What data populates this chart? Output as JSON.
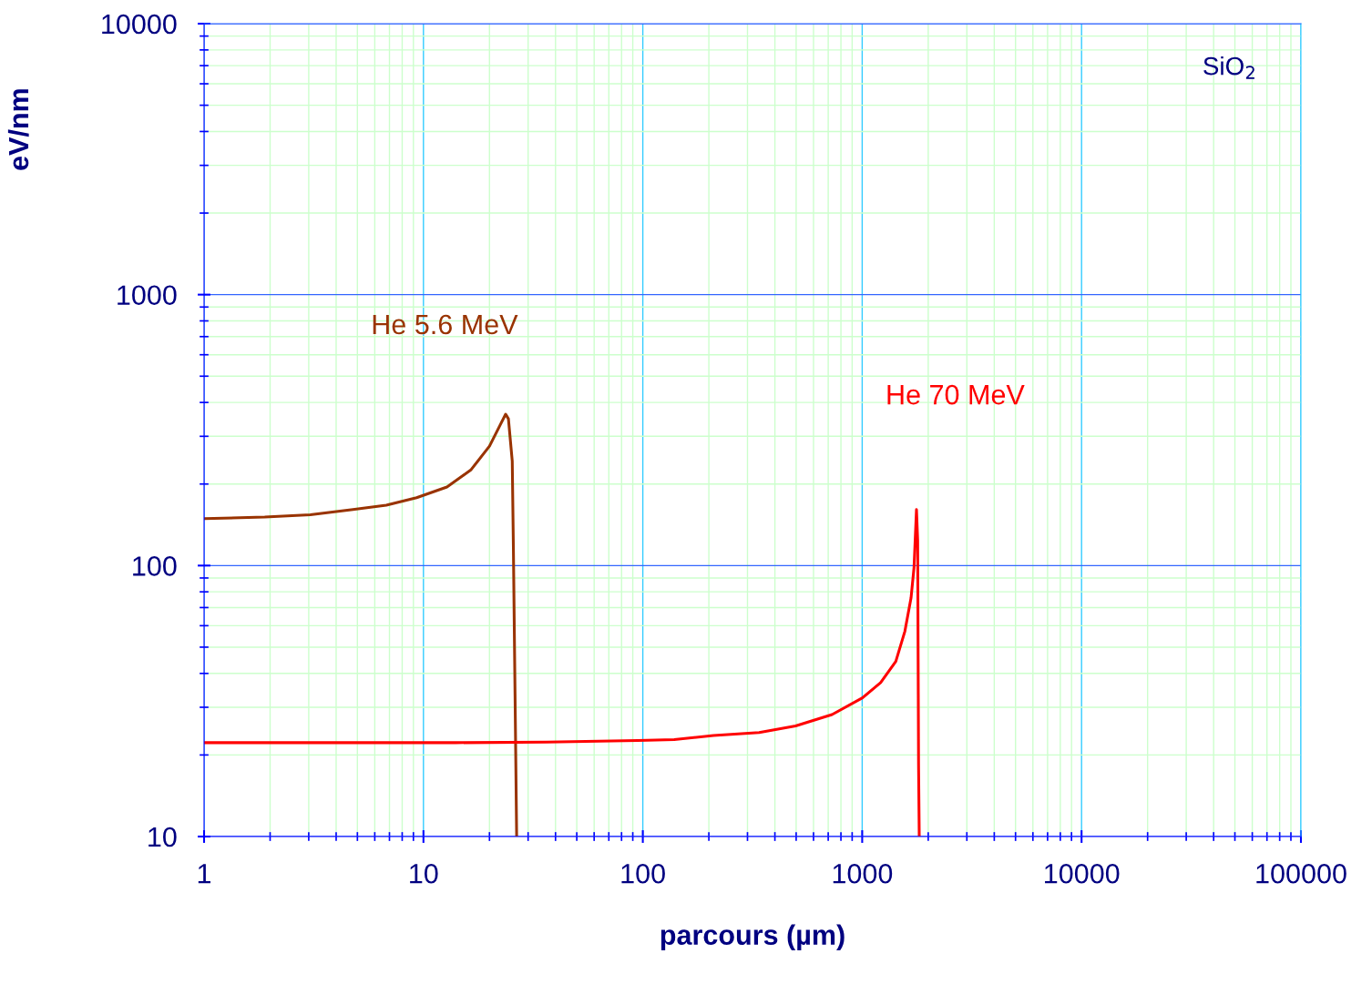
{
  "chart_data": {
    "type": "line",
    "xlabel": "parcours (µm)",
    "ylabel": "eV/nm",
    "log": "xy",
    "xlim": [
      1,
      100000
    ],
    "xticks": [
      1,
      {
        "value": 2,
        "label": null
      },
      {
        "value": 3,
        "label": null
      },
      {
        "value": 4,
        "label": null
      },
      {
        "value": 5,
        "label": null
      },
      {
        "value": 6,
        "label": null
      },
      {
        "value": 7,
        "label": null
      },
      {
        "value": 8,
        "label": null
      },
      {
        "value": 9,
        "label": null
      },
      10,
      {
        "value": 20,
        "label": null
      },
      {
        "value": 30,
        "label": null
      },
      {
        "value": 40,
        "label": null
      },
      {
        "value": 50,
        "label": null
      },
      {
        "value": 60,
        "label": null
      },
      {
        "value": 70,
        "label": null
      },
      {
        "value": 80,
        "label": null
      },
      {
        "value": 90,
        "label": null
      },
      100,
      {
        "value": 200,
        "label": null
      },
      {
        "value": 300,
        "label": null
      },
      {
        "value": 400,
        "label": null
      },
      {
        "value": 500,
        "label": null
      },
      {
        "value": 600,
        "label": null
      },
      {
        "value": 700,
        "label": null
      },
      {
        "value": 800,
        "label": null
      },
      {
        "value": 900,
        "label": null
      },
      1000,
      {
        "value": 2000,
        "label": null
      },
      {
        "value": 3000,
        "label": null
      },
      {
        "value": 4000,
        "label": null
      },
      {
        "value": 5000,
        "label": null
      },
      {
        "value": 6000,
        "label": null
      },
      {
        "value": 7000,
        "label": null
      },
      {
        "value": 8000,
        "label": null
      },
      {
        "value": 9000,
        "label": null
      },
      10000,
      {
        "value": 20000,
        "label": null
      },
      {
        "value": 30000,
        "label": null
      },
      {
        "value": 40000,
        "label": null
      },
      {
        "value": 50000,
        "label": null
      },
      {
        "value": 60000,
        "label": null
      },
      {
        "value": 70000,
        "label": null
      },
      {
        "value": 80000,
        "label": null
      },
      {
        "value": 90000,
        "label": null
      },
      100000
    ],
    "ylim": [
      10,
      10000
    ],
    "yticks": [
      10,
      {
        "value": 20,
        "label": null
      },
      {
        "value": 30,
        "label": null
      },
      {
        "value": 40,
        "label": null
      },
      {
        "value": 50,
        "label": null
      },
      {
        "value": 60,
        "label": null
      },
      {
        "value": 70,
        "label": null
      },
      {
        "value": 80,
        "label": null
      },
      {
        "value": 90,
        "label": null
      },
      100,
      {
        "value": 200,
        "label": null
      },
      {
        "value": 300,
        "label": null
      },
      {
        "value": 400,
        "label": null
      },
      {
        "value": 500,
        "label": null
      },
      {
        "value": 600,
        "label": null
      },
      {
        "value": 700,
        "label": null
      },
      {
        "value": 800,
        "label": null
      },
      {
        "value": 900,
        "label": null
      },
      1000,
      {
        "value": 2000,
        "label": null
      },
      {
        "value": 3000,
        "label": null
      },
      {
        "value": 4000,
        "label": null
      },
      {
        "value": 5000,
        "label": null
      },
      {
        "value": 6000,
        "label": null
      },
      {
        "value": 7000,
        "label": null
      },
      {
        "value": 8000,
        "label": null
      },
      {
        "value": 9000,
        "label": null
      },
      10000
    ],
    "grid": true,
    "legend": false,
    "marker": "none",
    "line_style": "solid",
    "annotations": [
      "SiO$_{2}$"
    ],
    "series": [
      {
        "name": "He 5.6 MeV",
        "color": "#993300",
        "x": [
          1,
          1.89,
          3.05,
          4.77,
          6.77,
          9.31,
          12.8,
          16.5,
          20.0,
          22.4,
          23.7,
          24.4,
          25.4,
          25.7,
          26.6
        ],
        "values": [
          149,
          151,
          154,
          161,
          167,
          178,
          195,
          226,
          276,
          331,
          362,
          348,
          243,
          118,
          10
        ]
      },
      {
        "name": "He 70 MeV",
        "color": "#ff0000",
        "x": [
          1,
          14.0,
          36.4,
          94.8,
          139,
          210,
          339,
          497,
          729,
          1003,
          1214,
          1423,
          1566,
          1670,
          1723,
          1768,
          1790,
          1807,
          1820
        ],
        "values": [
          22.2,
          22.2,
          22.3,
          22.6,
          22.8,
          23.6,
          24.2,
          25.6,
          28.2,
          32.5,
          37.0,
          44.3,
          57.3,
          76.0,
          98.5,
          161,
          124,
          18.4,
          10
        ]
      }
    ]
  }
}
